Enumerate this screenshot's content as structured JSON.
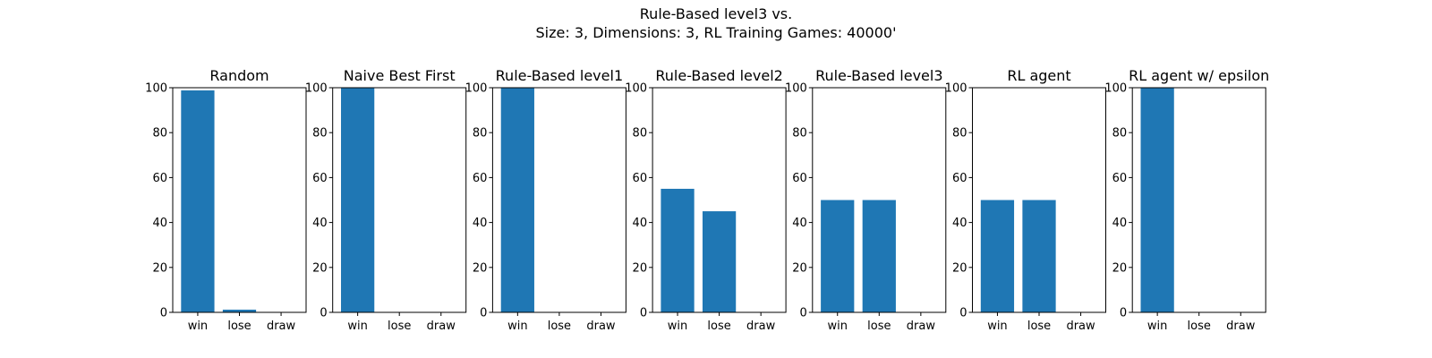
{
  "figure": {
    "title_line1": "Rule-Based level3 vs.",
    "title_line2": "Size: 3, Dimensions: 3, RL Training Games: 40000'"
  },
  "chart_data": [
    {
      "type": "bar",
      "title": "Random",
      "categories": [
        "win",
        "lose",
        "draw"
      ],
      "values": [
        98.8,
        1.2,
        0
      ],
      "ylim": [
        0,
        100
      ],
      "yticks": [
        0,
        20,
        40,
        60,
        80,
        100
      ],
      "color": "#1f77b4"
    },
    {
      "type": "bar",
      "title": "Naive Best First",
      "categories": [
        "win",
        "lose",
        "draw"
      ],
      "values": [
        100,
        0,
        0
      ],
      "ylim": [
        0,
        100
      ],
      "yticks": [
        0,
        20,
        40,
        60,
        80,
        100
      ],
      "color": "#1f77b4"
    },
    {
      "type": "bar",
      "title": "Rule-Based level1",
      "categories": [
        "win",
        "lose",
        "draw"
      ],
      "values": [
        100,
        0,
        0
      ],
      "ylim": [
        0,
        100
      ],
      "yticks": [
        0,
        20,
        40,
        60,
        80,
        100
      ],
      "color": "#1f77b4"
    },
    {
      "type": "bar",
      "title": "Rule-Based level2",
      "categories": [
        "win",
        "lose",
        "draw"
      ],
      "values": [
        55,
        45,
        0
      ],
      "ylim": [
        0,
        100
      ],
      "yticks": [
        0,
        20,
        40,
        60,
        80,
        100
      ],
      "color": "#1f77b4"
    },
    {
      "type": "bar",
      "title": "Rule-Based level3",
      "categories": [
        "win",
        "lose",
        "draw"
      ],
      "values": [
        50,
        50,
        0
      ],
      "ylim": [
        0,
        100
      ],
      "yticks": [
        0,
        20,
        40,
        60,
        80,
        100
      ],
      "color": "#1f77b4"
    },
    {
      "type": "bar",
      "title": "RL agent",
      "categories": [
        "win",
        "lose",
        "draw"
      ],
      "values": [
        50,
        50,
        0
      ],
      "ylim": [
        0,
        100
      ],
      "yticks": [
        0,
        20,
        40,
        60,
        80,
        100
      ],
      "color": "#1f77b4"
    },
    {
      "type": "bar",
      "title": "RL agent w/ epsilon",
      "categories": [
        "win",
        "lose",
        "draw"
      ],
      "values": [
        100,
        0,
        0
      ],
      "ylim": [
        0,
        100
      ],
      "yticks": [
        0,
        20,
        40,
        60,
        80,
        100
      ],
      "color": "#1f77b4"
    }
  ]
}
